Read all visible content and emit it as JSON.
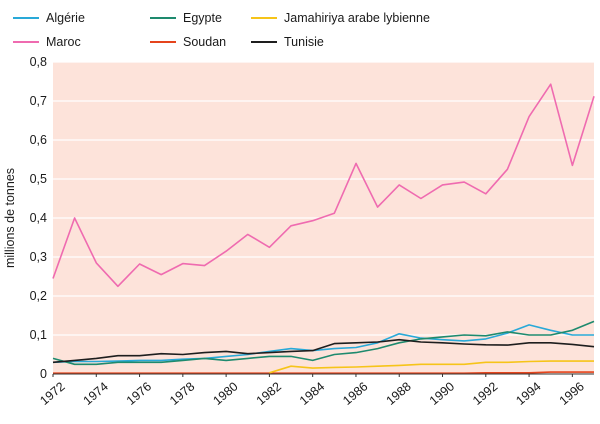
{
  "chart_data": {
    "type": "line",
    "title": "",
    "xlabel": "",
    "ylabel": "millions de tonnes",
    "ylim": [
      0,
      0.8
    ],
    "xlim": [
      1972,
      1997
    ],
    "yticks": [
      "0",
      "0,1",
      "0,2",
      "0,3",
      "0,4",
      "0,5",
      "0,6",
      "0,7",
      "0,8"
    ],
    "xticks": [
      "1972",
      "1974",
      "1976",
      "1978",
      "1980",
      "1982",
      "1984",
      "1986",
      "1988",
      "1990",
      "1992",
      "1994",
      "1996"
    ],
    "plot_background": "#fde3da",
    "grid": "horizontal",
    "legend_position": "top",
    "x": [
      1972,
      1973,
      1974,
      1975,
      1976,
      1977,
      1978,
      1979,
      1980,
      1981,
      1982,
      1983,
      1984,
      1985,
      1986,
      1987,
      1988,
      1989,
      1990,
      1991,
      1992,
      1993,
      1994,
      1995,
      1996,
      1997
    ],
    "series": [
      {
        "name": "Algérie",
        "color": "#29a9d8",
        "values": [
          0.03,
          0.032,
          0.032,
          0.033,
          0.035,
          0.035,
          0.038,
          0.04,
          0.045,
          0.05,
          0.058,
          0.065,
          0.06,
          0.065,
          0.068,
          0.08,
          0.103,
          0.092,
          0.088,
          0.085,
          0.09,
          0.105,
          0.126,
          0.112,
          0.1,
          0.1
        ]
      },
      {
        "name": "Maroc",
        "color": "#ef6bb0",
        "values": [
          0.245,
          0.4,
          0.285,
          0.225,
          0.282,
          0.255,
          0.283,
          0.278,
          0.315,
          0.358,
          0.325,
          0.38,
          0.393,
          0.412,
          0.54,
          0.428,
          0.485,
          0.45,
          0.485,
          0.492,
          0.462,
          0.525,
          0.66,
          0.743,
          0.535,
          0.712
        ]
      },
      {
        "name": "Egypte",
        "color": "#1e8a6e",
        "values": [
          0.04,
          0.025,
          0.025,
          0.03,
          0.03,
          0.03,
          0.035,
          0.04,
          0.035,
          0.04,
          0.045,
          0.045,
          0.035,
          0.05,
          0.055,
          0.065,
          0.08,
          0.09,
          0.095,
          0.1,
          0.098,
          0.108,
          0.1,
          0.1,
          0.112,
          0.135
        ]
      },
      {
        "name": "Soudan",
        "color": "#e5441c",
        "values": [
          0.002,
          0.002,
          0.002,
          0.002,
          0.002,
          0.002,
          0.002,
          0.002,
          0.002,
          0.002,
          0.002,
          0.002,
          0.002,
          0.002,
          0.002,
          0.002,
          0.002,
          0.002,
          0.002,
          0.002,
          0.003,
          0.003,
          0.003,
          0.005,
          0.005,
          0.005
        ]
      },
      {
        "name": "Jamahiriya arabe lybienne",
        "color": "#f6c419",
        "values": [
          null,
          null,
          null,
          null,
          null,
          null,
          null,
          null,
          null,
          null,
          0.003,
          0.02,
          0.015,
          0.017,
          0.018,
          0.02,
          0.022,
          0.025,
          0.025,
          0.025,
          0.03,
          0.03,
          0.032,
          0.033,
          0.033,
          0.033
        ]
      },
      {
        "name": "Tunisie",
        "color": "#1e1e1e",
        "values": [
          0.03,
          0.035,
          0.04,
          0.047,
          0.047,
          0.052,
          0.05,
          0.055,
          0.058,
          0.052,
          0.055,
          0.058,
          0.06,
          0.078,
          0.08,
          0.082,
          0.088,
          0.082,
          0.08,
          0.077,
          0.075,
          0.074,
          0.08,
          0.08,
          0.076,
          0.07
        ]
      }
    ],
    "legend_order": [
      "Algérie",
      "Egypte",
      "Jamahiriya arabe lybienne",
      "Maroc",
      "Soudan",
      "Tunisie"
    ]
  }
}
